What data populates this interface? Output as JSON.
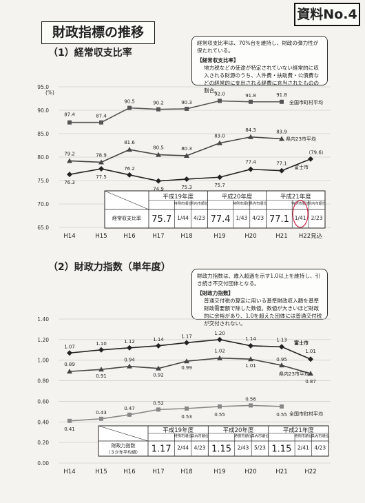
{
  "doc_label": "資料No.4",
  "main_title": "財政指標の推移",
  "chart_data": [
    {
      "type": "line",
      "section_title": "（1）経常収支比率",
      "note": {
        "lead": "経常収支比率は、70%台を維持し、財政の弾力性が保たれている。",
        "heading": "【経常収支比率】",
        "body": "地方税などの使途が特定されていない経常的に収入される財源のうち、人件費・扶助費・公債費などの経常的に支出される経費に充当されたものの割合。"
      },
      "y_unit": "(%)",
      "ylim": [
        65.0,
        95.0
      ],
      "yticks": [
        65.0,
        70.0,
        75.0,
        80.0,
        85.0,
        90.0,
        95.0
      ],
      "categories": [
        "H14",
        "H15",
        "H16",
        "H17",
        "H18",
        "H19",
        "H20",
        "H21",
        "H22見込"
      ],
      "series": [
        {
          "name": "全国市町村平均",
          "values": [
            87.4,
            87.4,
            90.5,
            90.2,
            90.3,
            92.0,
            91.8,
            91.8,
            null
          ],
          "labels": [
            "87.4",
            "87.4",
            "90.5",
            "90.2",
            "90.3",
            "92.0",
            "91.8",
            "91.8",
            ""
          ],
          "color": "#555555",
          "marker": "square"
        },
        {
          "name": "県内23市平均",
          "values": [
            79.2,
            78.9,
            81.6,
            80.5,
            80.3,
            83.0,
            84.3,
            83.9,
            null
          ],
          "labels": [
            "79.2",
            "78.9",
            "81.6",
            "80.5",
            "80.3",
            "83.0",
            "84.3",
            "83.9",
            ""
          ],
          "color": "#444444",
          "marker": "triangle"
        },
        {
          "name": "富士市",
          "values": [
            76.3,
            77.5,
            76.2,
            74.9,
            75.3,
            75.7,
            77.4,
            77.1,
            79.6
          ],
          "labels": [
            "76.3",
            "77.5",
            "76.2",
            "74.9",
            "75.3",
            "75.7",
            "77.4",
            "77.1",
            "（79.6）"
          ],
          "color": "#222222",
          "marker": "diamond"
        }
      ],
      "table": {
        "row_label": "経常収支比率",
        "years": [
          {
            "label": "平成19年度",
            "rank1_header": "特例市順位",
            "rank2_header": "県内市順位",
            "value": "75.7",
            "rank1": "1/44",
            "rank2": "4/23"
          },
          {
            "label": "平成20年度",
            "rank1_header": "特例市順位",
            "rank2_header": "県内市順位",
            "value": "77.4",
            "rank1": "1/43",
            "rank2": "4/23"
          },
          {
            "label": "平成21年度",
            "rank1_header": "特例市順位",
            "rank2_header": "県内市順位",
            "value": "77.1",
            "rank1": "1/41",
            "rank2": "2/23"
          }
        ]
      }
    },
    {
      "type": "line",
      "section_title": "（2）財政力指数（単年度）",
      "note": {
        "lead": "財政力指数は、歳入超過を示す1.0以上を維持し、引き続き不交付団体となる。",
        "heading": "【財政力指数】",
        "body": "普通交付税の算定に用いる基準財政収入額を基準財政需要額で除した数値。数値が大きいほど財政的に余裕があり、1.0を超えた団体には普通交付税が交付されない。"
      },
      "ylim": [
        0.0,
        1.4
      ],
      "yticks": [
        0.0,
        0.2,
        0.4,
        0.6,
        0.8,
        1.0,
        1.2,
        1.4
      ],
      "categories": [
        "H14",
        "H15",
        "H16",
        "H17",
        "H18",
        "H19",
        "H20",
        "H21",
        "H22"
      ],
      "series": [
        {
          "name": "富士市",
          "values": [
            1.07,
            1.1,
            1.12,
            1.14,
            1.17,
            1.2,
            1.14,
            1.13,
            1.01
          ],
          "labels": [
            "1.07",
            "1.10",
            "1.12",
            "1.14",
            "1.17",
            "1.20",
            "1.14",
            "1.13",
            "1.01"
          ],
          "color": "#222222",
          "marker": "diamond"
        },
        {
          "name": "県内23市平均",
          "values": [
            0.89,
            0.91,
            0.94,
            0.92,
            0.99,
            1.02,
            1.01,
            0.95,
            0.87
          ],
          "labels": [
            "0.89",
            "0.91",
            "0.94",
            "0.92",
            "0.99",
            "1.02",
            "1.01",
            "0.95",
            "0.87"
          ],
          "color": "#444444",
          "marker": "triangle"
        },
        {
          "name": "全国市町村平均",
          "values": [
            0.41,
            0.43,
            0.47,
            0.52,
            0.53,
            0.55,
            0.56,
            0.55,
            null
          ],
          "labels": [
            "0.41",
            "0.43",
            "0.47",
            "0.52",
            "0.53",
            "0.55",
            "0.56",
            "0.55",
            ""
          ],
          "color": "#888888",
          "marker": "square"
        }
      ],
      "table": {
        "row_label": "財政力指数",
        "row_sublabel": "（３か年平均値）",
        "years": [
          {
            "label": "平成19年度",
            "rank1_header": "特例市順位",
            "rank2_header": "県内市順位",
            "value": "1.17",
            "rank1": "2/44",
            "rank2": "4/23"
          },
          {
            "label": "平成20年度",
            "rank1_header": "特例市順位",
            "rank2_header": "県内市順位",
            "value": "1.15",
            "rank1": "2/43",
            "rank2": "5/23"
          },
          {
            "label": "平成21年度",
            "rank1_header": "特例市順位",
            "rank2_header": "県内市順位",
            "value": "1.15",
            "rank1": "2/41",
            "rank2": "4/23"
          }
        ]
      }
    }
  ]
}
